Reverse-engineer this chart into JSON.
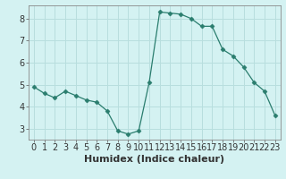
{
  "x": [
    0,
    1,
    2,
    3,
    4,
    5,
    6,
    7,
    8,
    9,
    10,
    11,
    12,
    13,
    14,
    15,
    16,
    17,
    18,
    19,
    20,
    21,
    22,
    23
  ],
  "y": [
    4.9,
    4.6,
    4.4,
    4.7,
    4.5,
    4.3,
    4.2,
    3.8,
    2.9,
    2.75,
    2.9,
    5.1,
    8.3,
    8.25,
    8.2,
    8.0,
    7.65,
    7.65,
    6.6,
    6.3,
    5.8,
    5.1,
    4.7,
    3.6
  ],
  "line_color": "#2a7d6e",
  "marker": "D",
  "marker_size": 2.5,
  "bg_color": "#d4f2f2",
  "grid_color": "#b8dede",
  "xlabel": "Humidex (Indice chaleur)",
  "xlabel_fontsize": 8,
  "tick_fontsize": 7,
  "ylim": [
    2.5,
    8.6
  ],
  "xlim": [
    -0.5,
    23.5
  ],
  "yticks": [
    3,
    4,
    5,
    6,
    7,
    8
  ],
  "xticks": [
    0,
    1,
    2,
    3,
    4,
    5,
    6,
    7,
    8,
    9,
    10,
    11,
    12,
    13,
    14,
    15,
    16,
    17,
    18,
    19,
    20,
    21,
    22,
    23
  ]
}
